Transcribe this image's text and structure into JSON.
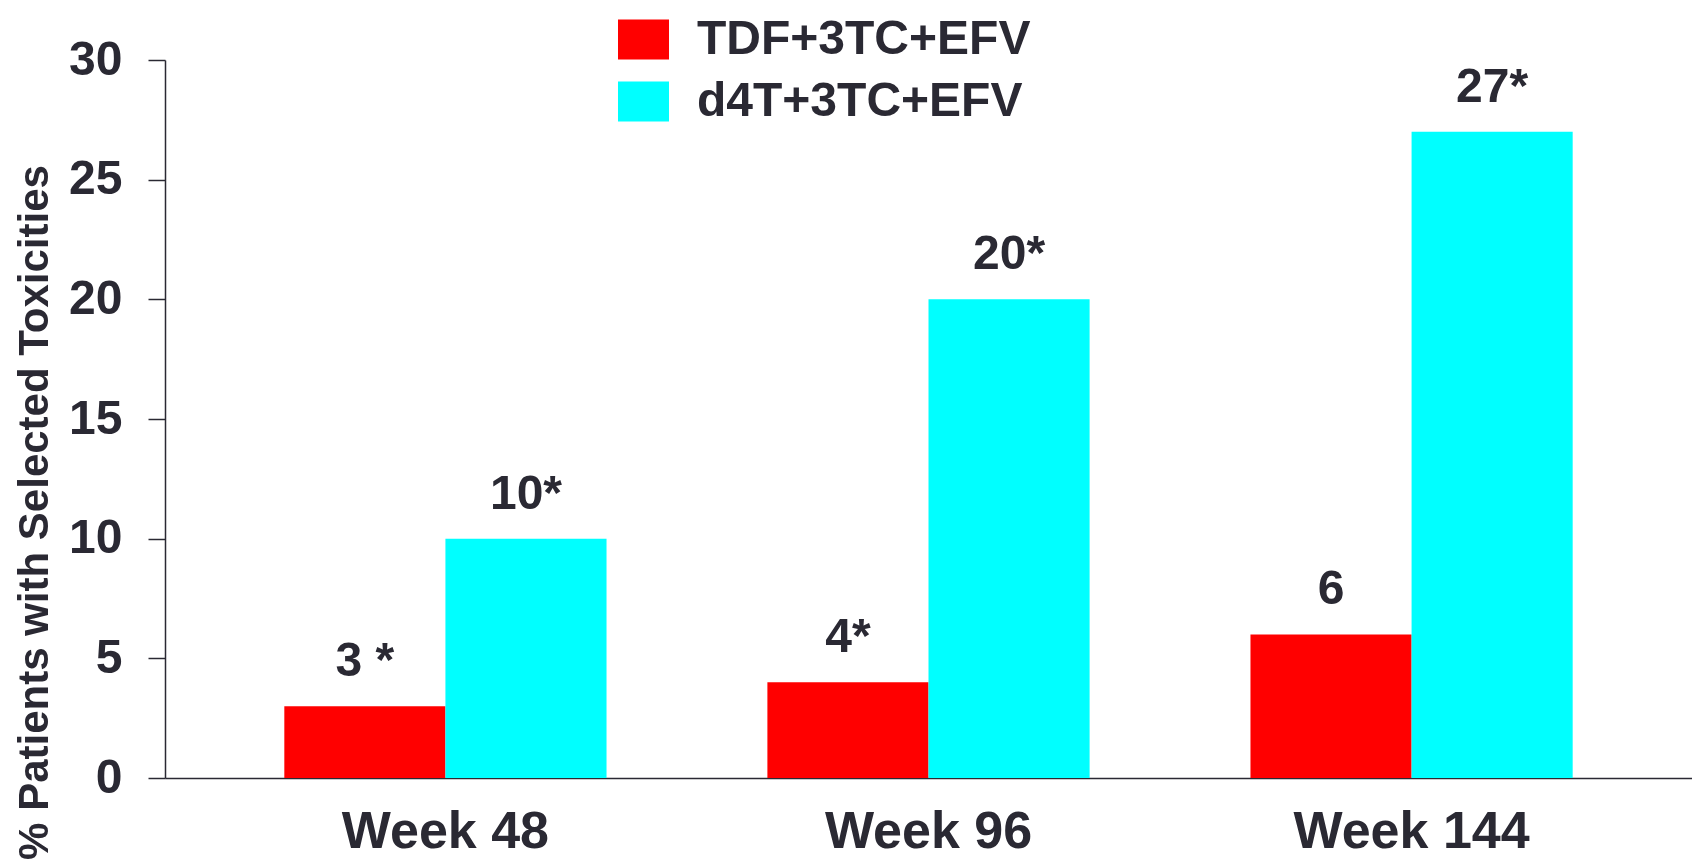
{
  "chart_data": {
    "type": "bar",
    "ylabel": "% Patients with Selected Toxicities",
    "categories": [
      "Week 48",
      "Week 96",
      "Week 144"
    ],
    "series": [
      {
        "name": "TDF+3TC+EFV",
        "color": "#ff0000",
        "values": [
          3,
          4,
          6
        ],
        "value_labels": [
          "3 *",
          "4*",
          "6"
        ]
      },
      {
        "name": "d4T+3TC+EFV",
        "color": "#00ffff",
        "values": [
          10,
          20,
          27
        ],
        "value_labels": [
          "10*",
          "20*",
          "27*"
        ]
      }
    ],
    "ylim": [
      0,
      30
    ],
    "yticks": [
      0,
      5,
      10,
      15,
      20,
      25,
      30
    ],
    "legend": "top"
  }
}
